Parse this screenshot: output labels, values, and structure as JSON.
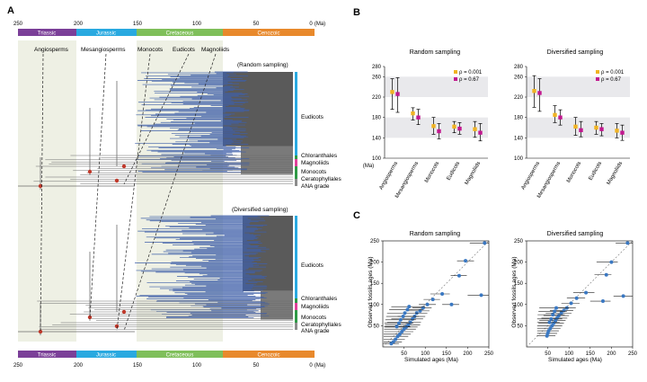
{
  "panels": {
    "a": "A",
    "b": "B",
    "c": "C"
  },
  "colors": {
    "triassic": "#7b3f98",
    "jurassic": "#29a9e0",
    "cretaceous": "#7fbf5a",
    "cenozoic": "#e8892c",
    "tree": "#3f5fa8",
    "node": "#c0392b",
    "shade": "#eef0e4",
    "orange_marker": "#f0b323",
    "magenta_marker": "#c2188f",
    "scatter_point": "#3a78c2",
    "eudicots_bar": "#29a9e0",
    "magnoliids_bar": "#e0409a",
    "monocots_bar": "#2e9a45"
  },
  "panel_a": {
    "time_axis_label": "(Ma)",
    "time_ticks": [
      "250",
      "200",
      "150",
      "100",
      "50",
      "0"
    ],
    "periods": [
      "Triassic",
      "Jurassic",
      "Cretaceous",
      "Cenozoic"
    ],
    "callouts": [
      "Angiosperms",
      "Mesangiosperms",
      "Monocots",
      "Eudicots",
      "Magnoliids"
    ],
    "tree_titles": [
      "(Random sampling)",
      "(Diversified sampling)"
    ],
    "clades": [
      "Eudicots",
      "Chloranthales",
      "Magnoliids",
      "Monocots",
      "Ceratophyllales",
      "ANA grade"
    ]
  },
  "chart_data": [
    {
      "type": "scatter",
      "title": "Random sampling",
      "xlabel": "",
      "ylabel": "(Ma)",
      "categories": [
        "Angiosperms",
        "Mesangiosperms",
        "Monocots",
        "Eudicots",
        "Magnoliids"
      ],
      "ylim": [
        100,
        280
      ],
      "yticks": [
        100,
        140,
        180,
        220,
        260,
        280
      ],
      "shaded_bands": [
        [
          140,
          180
        ],
        [
          220,
          260
        ]
      ],
      "series": [
        {
          "name": "ρ = 0.001",
          "values": [
            230,
            188,
            163,
            162,
            157
          ],
          "lower": [
            196,
            175,
            147,
            150,
            141
          ],
          "upper": [
            256,
            199,
            180,
            172,
            172
          ]
        },
        {
          "name": "ρ = 0.67",
          "values": [
            226,
            180,
            153,
            158,
            150
          ],
          "lower": [
            190,
            166,
            138,
            147,
            134
          ],
          "upper": [
            258,
            196,
            168,
            170,
            168
          ]
        }
      ]
    },
    {
      "type": "scatter",
      "title": "Diversified sampling",
      "xlabel": "",
      "ylabel": "",
      "categories": [
        "Angiosperms",
        "Mesangiosperms",
        "Monocots",
        "Eudicots",
        "Magnoliids"
      ],
      "ylim": [
        100,
        280
      ],
      "yticks": [
        100,
        140,
        180,
        220,
        260,
        280
      ],
      "shaded_bands": [
        [
          140,
          180
        ],
        [
          220,
          260
        ]
      ],
      "series": [
        {
          "name": "ρ = 0.001",
          "values": [
            232,
            185,
            162,
            160,
            154
          ],
          "lower": [
            200,
            170,
            145,
            147,
            140
          ],
          "upper": [
            262,
            203,
            180,
            172,
            168
          ]
        },
        {
          "name": "ρ = 0.67",
          "values": [
            228,
            180,
            155,
            157,
            150
          ],
          "lower": [
            192,
            165,
            142,
            144,
            135
          ],
          "upper": [
            256,
            195,
            172,
            168,
            165
          ]
        }
      ]
    },
    {
      "type": "scatter",
      "title": "Random sampling",
      "xlabel": "Simulated  ages (Ma)",
      "ylabel": "Observed fossils ages (Ma)",
      "xlim": [
        0,
        250
      ],
      "ylim": [
        0,
        250
      ],
      "xticks": [
        50,
        100,
        150,
        200,
        250
      ],
      "yticks": [
        50,
        100,
        150,
        200,
        250
      ],
      "diagonal": true,
      "points": [
        {
          "x": 240,
          "y": 245,
          "lo": 205,
          "hi": 250
        },
        {
          "x": 195,
          "y": 203,
          "lo": 175,
          "hi": 215
        },
        {
          "x": 180,
          "y": 168,
          "lo": 160,
          "hi": 198
        },
        {
          "x": 232,
          "y": 122,
          "lo": 200,
          "hi": 250
        },
        {
          "x": 162,
          "y": 100,
          "lo": 140,
          "hi": 180
        },
        {
          "x": 140,
          "y": 125,
          "lo": 112,
          "hi": 158
        },
        {
          "x": 118,
          "y": 112,
          "lo": 96,
          "hi": 135
        },
        {
          "x": 105,
          "y": 100,
          "lo": 85,
          "hi": 125
        },
        {
          "x": 95,
          "y": 92,
          "lo": 70,
          "hi": 115
        },
        {
          "x": 88,
          "y": 85,
          "lo": 55,
          "hi": 110
        },
        {
          "x": 80,
          "y": 80,
          "lo": 40,
          "hi": 105
        },
        {
          "x": 75,
          "y": 72,
          "lo": 35,
          "hi": 100
        },
        {
          "x": 70,
          "y": 66,
          "lo": 20,
          "hi": 95
        },
        {
          "x": 65,
          "y": 58,
          "lo": 10,
          "hi": 90
        },
        {
          "x": 60,
          "y": 52,
          "lo": 5,
          "hi": 88
        },
        {
          "x": 55,
          "y": 47,
          "lo": 5,
          "hi": 82
        },
        {
          "x": 50,
          "y": 42,
          "lo": 3,
          "hi": 78
        },
        {
          "x": 45,
          "y": 36,
          "lo": 3,
          "hi": 72
        },
        {
          "x": 40,
          "y": 30,
          "lo": 2,
          "hi": 66
        },
        {
          "x": 35,
          "y": 25,
          "lo": 2,
          "hi": 60
        },
        {
          "x": 30,
          "y": 18,
          "lo": 2,
          "hi": 52
        },
        {
          "x": 25,
          "y": 12,
          "lo": 2,
          "hi": 45
        },
        {
          "x": 20,
          "y": 8,
          "lo": 1,
          "hi": 38
        },
        {
          "x": 62,
          "y": 95,
          "lo": 20,
          "hi": 100
        },
        {
          "x": 58,
          "y": 88,
          "lo": 15,
          "hi": 95
        },
        {
          "x": 52,
          "y": 80,
          "lo": 10,
          "hi": 90
        },
        {
          "x": 48,
          "y": 72,
          "lo": 8,
          "hi": 85
        },
        {
          "x": 42,
          "y": 64,
          "lo": 6,
          "hi": 78
        },
        {
          "x": 38,
          "y": 56,
          "lo": 4,
          "hi": 72
        },
        {
          "x": 33,
          "y": 48,
          "lo": 3,
          "hi": 65
        }
      ]
    },
    {
      "type": "scatter",
      "title": "Diversified sampling",
      "xlabel": "Simulated ages (Ma)",
      "ylabel": "Observed fossils ages (Ma)",
      "xlim": [
        0,
        250
      ],
      "ylim": [
        0,
        250
      ],
      "xticks": [
        50,
        100,
        150,
        200,
        250
      ],
      "yticks": [
        50,
        100,
        150,
        200,
        250
      ],
      "diagonal": true,
      "points": [
        {
          "x": 238,
          "y": 245,
          "lo": 210,
          "hi": 250
        },
        {
          "x": 200,
          "y": 200,
          "lo": 165,
          "hi": 215
        },
        {
          "x": 188,
          "y": 170,
          "lo": 160,
          "hi": 200
        },
        {
          "x": 228,
          "y": 120,
          "lo": 205,
          "hi": 250
        },
        {
          "x": 180,
          "y": 108,
          "lo": 150,
          "hi": 198
        },
        {
          "x": 140,
          "y": 128,
          "lo": 110,
          "hi": 160
        },
        {
          "x": 118,
          "y": 115,
          "lo": 95,
          "hi": 138
        },
        {
          "x": 105,
          "y": 103,
          "lo": 82,
          "hi": 125
        },
        {
          "x": 95,
          "y": 92,
          "lo": 70,
          "hi": 116
        },
        {
          "x": 88,
          "y": 86,
          "lo": 55,
          "hi": 110
        },
        {
          "x": 82,
          "y": 80,
          "lo": 45,
          "hi": 106
        },
        {
          "x": 76,
          "y": 74,
          "lo": 40,
          "hi": 100
        },
        {
          "x": 72,
          "y": 68,
          "lo": 35,
          "hi": 96
        },
        {
          "x": 68,
          "y": 62,
          "lo": 30,
          "hi": 92
        },
        {
          "x": 64,
          "y": 56,
          "lo": 28,
          "hi": 88
        },
        {
          "x": 60,
          "y": 50,
          "lo": 25,
          "hi": 84
        },
        {
          "x": 56,
          "y": 44,
          "lo": 25,
          "hi": 80
        },
        {
          "x": 52,
          "y": 38,
          "lo": 25,
          "hi": 76
        },
        {
          "x": 50,
          "y": 32,
          "lo": 25,
          "hi": 72
        },
        {
          "x": 48,
          "y": 26,
          "lo": 24,
          "hi": 68
        },
        {
          "x": 70,
          "y": 92,
          "lo": 30,
          "hi": 100
        },
        {
          "x": 66,
          "y": 84,
          "lo": 28,
          "hi": 95
        },
        {
          "x": 62,
          "y": 76,
          "lo": 26,
          "hi": 90
        },
        {
          "x": 58,
          "y": 66,
          "lo": 25,
          "hi": 84
        },
        {
          "x": 54,
          "y": 58,
          "lo": 25,
          "hi": 78
        }
      ]
    }
  ]
}
